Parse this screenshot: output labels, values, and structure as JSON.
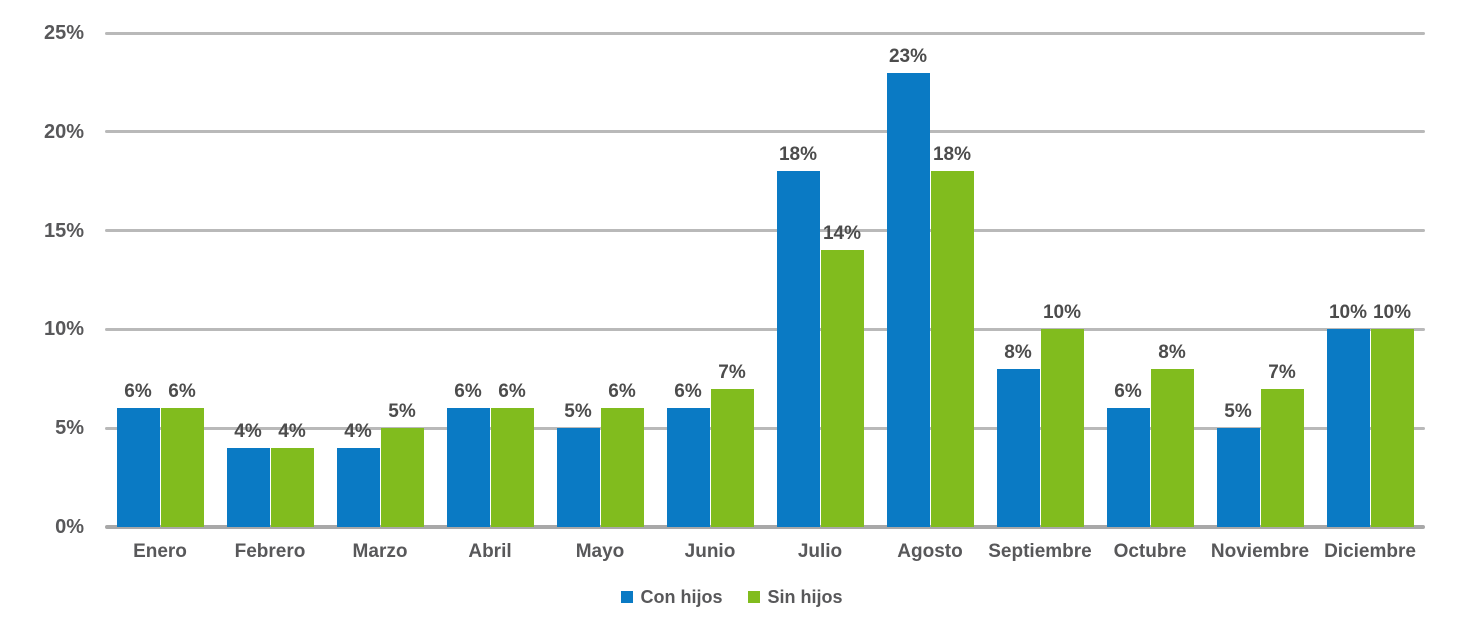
{
  "chart_data": {
    "type": "bar",
    "title": "",
    "categories": [
      "Enero",
      "Febrero",
      "Marzo",
      "Abril",
      "Mayo",
      "Junio",
      "Julio",
      "Agosto",
      "Septiembre",
      "Octubre",
      "Noviembre",
      "Diciembre"
    ],
    "series": [
      {
        "name": "Con hijos",
        "color": "#0a7ac4",
        "values": [
          6,
          4,
          4,
          6,
          5,
          6,
          18,
          23,
          8,
          6,
          5,
          10
        ]
      },
      {
        "name": "Sin hijos",
        "color": "#81bc1e",
        "values": [
          6,
          4,
          5,
          6,
          6,
          7,
          14,
          18,
          10,
          8,
          7,
          10
        ]
      }
    ],
    "value_suffix": "%",
    "data_labels_visible": true,
    "y_axis": {
      "min": 0,
      "max": 25,
      "step": 5,
      "tick_labels": [
        "0%",
        "5%",
        "10%",
        "15%",
        "20%",
        "25%"
      ]
    },
    "x_axis_label": "",
    "y_axis_label": "",
    "grid": true,
    "legend_position": "bottom",
    "style": {
      "gridline_color": "#b9b9b9",
      "baseline_color": "#a8a8a8",
      "axis_text_color": "#58585a",
      "data_label_color": "#4c4c4c",
      "background_color": "#ffffff"
    }
  }
}
